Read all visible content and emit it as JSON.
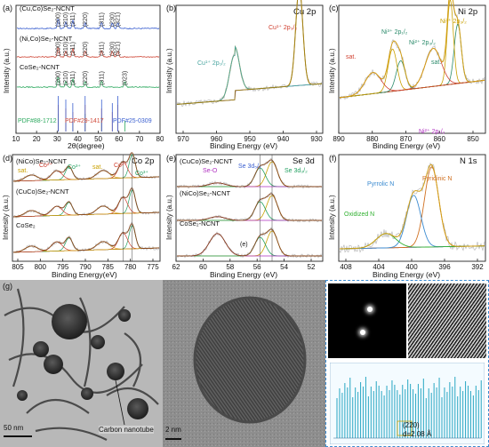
{
  "colors": {
    "exp": "#b0b0b0",
    "fit": "#d4a017",
    "bg": "#7a4fb0",
    "cu1": "#9b7d15",
    "cu2": "#4aa5a0",
    "ni3": "#c9a000",
    "ni2": "#2a8a6a",
    "sat": "#d04030",
    "co3": "#22a060",
    "co2": "#d04030",
    "se_o": "#b030c0",
    "pyrrolic": "#3a8ad0",
    "pyridinic": "#d07020",
    "oxidized": "#30b030",
    "fft_bg": "#000000",
    "profile": "#3aaec8"
  },
  "panels": {
    "a": {
      "label": "(a)",
      "title": "",
      "xlabel": "2θ(degree)",
      "ylabel": "Intensity (a.u.)",
      "xticks": [
        "10",
        "20",
        "30",
        "40",
        "50",
        "60",
        "70",
        "80"
      ],
      "series": [
        "(Cu,Co)Se₂-NCNT",
        "(Ni,Co)Se₂-NCNT",
        "CoSe₂-NCNT"
      ],
      "top_hkl": [
        "(200)",
        "(210)",
        "(211)",
        "(220)",
        "(311)",
        "(230)",
        "(321)"
      ],
      "mid_hkl": [
        "(200)",
        "(210)",
        "(211)",
        "(220)",
        "(311)",
        "(230)",
        "(321)"
      ],
      "bot_hkl": [
        "(200)",
        "(210)",
        "(211)",
        "(220)",
        "(311)",
        "(023)"
      ],
      "pdf": [
        "PDF#88-1712",
        "PDF#29-1417",
        "PDF#25-0309"
      ]
    },
    "b": {
      "label": "(b)",
      "title": "Cu 2p",
      "xlabel": "Binding Energy (eV)",
      "ylabel": "Intensity (a.u.)",
      "xticks": [
        "970",
        "960",
        "950",
        "940",
        "930"
      ],
      "peaks": [
        "Cu¹⁺ 2p₃/₂",
        "Cu¹⁺ 2p₁/₂"
      ]
    },
    "c": {
      "label": "(c)",
      "title": "Ni 2p",
      "xlabel": "Binding Energy (eV)",
      "ylabel": "Intensity (a.u.)",
      "xticks": [
        "890",
        "880",
        "870",
        "860",
        "850"
      ],
      "peaks": [
        "Ni³⁺ 2p₃/₂",
        "Ni³⁺ 2p₁/₂",
        "Ni²⁺ 2p₃/₂",
        "Ni²⁺ 2p₁/₂",
        "sat.",
        "sat."
      ]
    },
    "d": {
      "label": "(d)",
      "title": "Co 2p",
      "xlabel": "Binding Energy(eV)",
      "ylabel": "Intensity (a.u.)",
      "xticks": [
        "805",
        "800",
        "795",
        "790",
        "785",
        "780",
        "775"
      ],
      "series": [
        "(NiCo)Se₂-NCNT",
        "(CuCo)Se₂-NCNT",
        "CoSe₂"
      ],
      "peaks": [
        "sat.",
        "Co²⁺",
        "Co³⁺",
        "sat.",
        "Co²⁺",
        "Co³⁺"
      ]
    },
    "e": {
      "label": "(e)",
      "title": "Se 3d",
      "xlabel": "Binding Energy (eV)",
      "ylabel": "Intensity (a.u.)",
      "xticks": [
        "62",
        "60",
        "58",
        "56",
        "54",
        "52"
      ],
      "series": [
        "(CuCo)Se₂-NCNT",
        "(NiCo)Se₂-NCNT",
        "CoSe₂-NCNT"
      ],
      "peaks": [
        "Se-O",
        "Se 3d₅/₂",
        "Se 3d₃/₂"
      ],
      "series_short": "(e)"
    },
    "f": {
      "label": "(f)",
      "title": "N 1s",
      "xlabel": "Binding Energy (eV)",
      "ylabel": "Intensity (a.u.)",
      "xticks": [
        "408",
        "404",
        "400",
        "396",
        "392"
      ],
      "peaks": [
        "Pyrrolic N",
        "Pyridinic N",
        "Oxidized N"
      ]
    },
    "g": {
      "label": "(g)",
      "annotation": "Carbon nanotube",
      "scale1": "50 nm",
      "scale2": "2 nm",
      "plane": "(220)",
      "dspacing": "d=2.08 Å"
    }
  },
  "chart_data": [
    {
      "type": "line",
      "panel": "a",
      "xlabel": "2θ(degree)",
      "ylabel": "Intensity (a.u.)",
      "xlim": [
        10,
        80
      ],
      "series": [
        {
          "name": "(Cu,Co)Se₂-NCNT",
          "peaks": [
            30.5,
            34.2,
            37.6,
            43.6,
            51.6,
            56.8,
            59.5
          ],
          "color": "#3a5fd0"
        },
        {
          "name": "(Ni,Co)Se₂-NCNT",
          "peaks": [
            30.5,
            34.2,
            37.6,
            43.6,
            51.6,
            56.8,
            59.5
          ],
          "color": "#d04a3a"
        },
        {
          "name": "CoSe₂-NCNT",
          "peaks": [
            30.5,
            34.2,
            37.6,
            43.6,
            51.6,
            62.9
          ],
          "color": "#2eaa60"
        }
      ]
    },
    {
      "type": "line",
      "panel": "b",
      "xlabel": "Binding Energy (eV)",
      "xlim": [
        970,
        925
      ],
      "peaks": [
        {
          "name": "Cu¹⁺ 2p₃/₂",
          "center": 932.2,
          "height": 1.0,
          "width": 1.2
        },
        {
          "name": "Cu¹⁺ 2p₁/₂",
          "center": 952.1,
          "height": 0.45,
          "width": 1.4
        }
      ]
    },
    {
      "type": "line",
      "panel": "c",
      "xlabel": "Binding Energy (eV)",
      "xlim": [
        890,
        845
      ],
      "peaks": [
        {
          "name": "Ni²⁺ 2p₃/₂",
          "center": 853.5,
          "height": 0.7
        },
        {
          "name": "Ni³⁺ 2p₃/₂",
          "center": 855.8,
          "height": 1.0
        },
        {
          "name": "sat.",
          "center": 861.0,
          "height": 0.45
        },
        {
          "name": "Ni²⁺ 2p₁/₂",
          "center": 871.0,
          "height": 0.35
        },
        {
          "name": "Ni³⁺ 2p₁/₂",
          "center": 873.5,
          "height": 0.5
        },
        {
          "name": "sat.",
          "center": 879.5,
          "height": 0.25
        }
      ]
    },
    {
      "type": "line",
      "panel": "d",
      "xlabel": "Binding Energy(eV)",
      "xlim": [
        807,
        772
      ],
      "series": [
        {
          "name": "(NiCo)Se₂-NCNT"
        },
        {
          "name": "(CuCo)Se₂-NCNT"
        },
        {
          "name": "CoSe₂"
        }
      ],
      "peaks": [
        {
          "name": "Co³⁺",
          "center": 778.6
        },
        {
          "name": "Co²⁺",
          "center": 780.8
        },
        {
          "name": "sat.",
          "center": 785.5
        },
        {
          "name": "Co³⁺",
          "center": 793.6
        },
        {
          "name": "Co²⁺",
          "center": 796.5
        },
        {
          "name": "sat.",
          "center": 802.5
        }
      ]
    },
    {
      "type": "line",
      "panel": "e",
      "xlabel": "Binding Energy (eV)",
      "xlim": [
        62,
        51
      ],
      "series": [
        {
          "name": "(CuCo)Se₂-NCNT"
        },
        {
          "name": "(NiCo)Se₂-NCNT"
        },
        {
          "name": "CoSe₂-NCNT"
        }
      ],
      "peaks": [
        {
          "name": "Se 3d₅/₂",
          "center": 54.8
        },
        {
          "name": "Se 3d₃/₂",
          "center": 55.7
        },
        {
          "name": "Se-O",
          "center": 58.9
        }
      ]
    },
    {
      "type": "line",
      "panel": "f",
      "xlabel": "Binding Energy (eV)",
      "xlim": [
        410,
        392
      ],
      "peaks": [
        {
          "name": "Pyridinic N",
          "center": 398.6,
          "height": 1.0
        },
        {
          "name": "Pyrrolic N",
          "center": 400.8,
          "height": 0.65
        },
        {
          "name": "Oxidized N",
          "center": 404.2,
          "height": 0.18
        }
      ]
    }
  ]
}
